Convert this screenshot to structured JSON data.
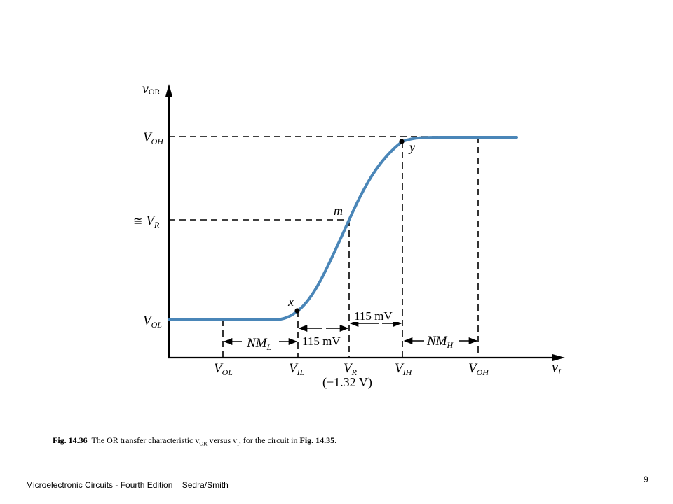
{
  "figure": {
    "y_axis_label": "v",
    "y_axis_label_sub": "OR",
    "x_axis_label": "v",
    "x_axis_label_sub": "I",
    "y_ticks": [
      {
        "main": "V",
        "sub": "OH",
        "prefix": ""
      },
      {
        "main": "V",
        "sub": "R",
        "prefix": "≅"
      },
      {
        "main": "V",
        "sub": "OL",
        "prefix": ""
      }
    ],
    "x_ticks": [
      {
        "main": "V",
        "sub": "OL"
      },
      {
        "main": "V",
        "sub": "IL"
      },
      {
        "main": "V",
        "sub": "R"
      },
      {
        "main": "V",
        "sub": "IH"
      },
      {
        "main": "V",
        "sub": "OH"
      }
    ],
    "vr_value": "(−1.32 V)",
    "points": {
      "x": "x",
      "m": "m",
      "y": "y"
    },
    "dim_115_upper": "115 mV",
    "dim_115_lower": "115 mV",
    "nml": {
      "main": "NM",
      "sub": "L"
    },
    "nmh": {
      "main": "NM",
      "sub": "H"
    },
    "curve_color": "#4a86b8"
  },
  "caption": {
    "fig_no": "Fig. 14.36",
    "text_1": "  The OR transfer characteristic v",
    "sub_1": "OR",
    "text_2": " versus v",
    "sub_2": "I",
    "text_3": ", for the circuit in ",
    "ref": "Fig. 14.35",
    "text_4": "."
  },
  "footer": {
    "book": "Microelectronic Circuits - Fourth Edition    Sedra/Smith",
    "page": "9"
  }
}
